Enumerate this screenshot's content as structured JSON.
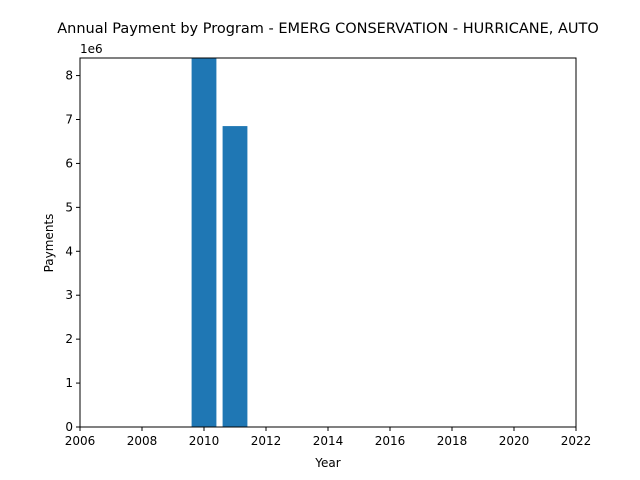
{
  "chart_data": {
    "type": "bar",
    "title": "Annual Payment by Program - EMERG CONSERVATION - HURRICANE, AUTO",
    "xlabel": "Year",
    "ylabel": "Payments",
    "y_offset_label": "1e6",
    "x": [
      2010,
      2011
    ],
    "values": [
      8400000,
      6850000
    ],
    "bar_width_years": 0.8,
    "xlim": [
      2006,
      2022
    ],
    "ylim": [
      0,
      8400000
    ],
    "x_ticks": [
      2006,
      2008,
      2010,
      2012,
      2014,
      2016,
      2018,
      2020,
      2022
    ],
    "x_tick_labels": [
      "2006",
      "2008",
      "2010",
      "2012",
      "2014",
      "2016",
      "2018",
      "2020",
      "2022"
    ],
    "y_ticks": [
      0,
      1000000,
      2000000,
      3000000,
      4000000,
      5000000,
      6000000,
      7000000,
      8000000
    ],
    "y_tick_labels": [
      "0",
      "1",
      "2",
      "3",
      "4",
      "5",
      "6",
      "7",
      "8"
    ],
    "grid": false,
    "bar_color": "#1f77b4"
  }
}
